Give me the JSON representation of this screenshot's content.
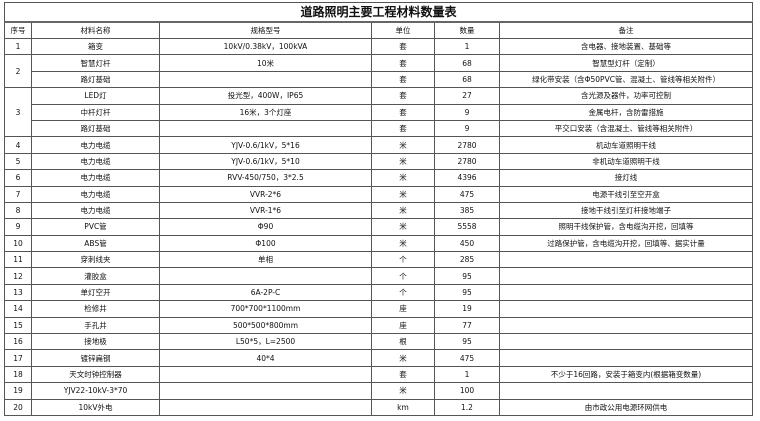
{
  "title": "道路照明主要工程材料数量表",
  "headers": [
    "序号",
    "材料名称",
    "规格型号",
    "单位",
    "数量",
    "备注"
  ],
  "groups": [
    {
      "no": "1",
      "items": [
        [
          "箱变",
          "10kV/0.38kV，100kVA",
          "套",
          "1",
          "含电器、接地装置、基础等"
        ]
      ]
    },
    {
      "no": "2",
      "items": [
        [
          "智慧灯杆",
          "10米",
          "套",
          "68",
          "智慧型灯杆（定制）"
        ],
        [
          "路灯基础",
          "",
          "套",
          "68",
          "绿化带安装（含Φ50PVC管、混凝土、管线等相关附件）"
        ]
      ]
    },
    {
      "no": "3",
      "items": [
        [
          "LED灯",
          "投光型，400W，IP65",
          "套",
          "27",
          "含光源及器件，功率可控制"
        ],
        [
          "中杆灯杆",
          "16米，3个灯座",
          "套",
          "9",
          "金属电杆，含防雷措施"
        ],
        [
          "路灯基础",
          "",
          "套",
          "9",
          "平交口安装（含混凝土、管线等相关附件）"
        ]
      ]
    },
    {
      "no": "4",
      "items": [
        [
          "电力电缆",
          "YJV-0.6/1kV，5*16",
          "米",
          "2780",
          "机动车道照明干线"
        ]
      ]
    },
    {
      "no": "5",
      "items": [
        [
          "电力电缆",
          "YJV-0.6/1kV，5*10",
          "米",
          "2780",
          "非机动车道照明干线"
        ]
      ]
    },
    {
      "no": "6",
      "items": [
        [
          "电力电缆",
          "RVV-450/750，3*2.5",
          "米",
          "4396",
          "接灯线"
        ]
      ]
    },
    {
      "no": "7",
      "items": [
        [
          "电力电缆",
          "VVR-2*6",
          "米",
          "475",
          "电源干线引至空开盒"
        ]
      ]
    },
    {
      "no": "8",
      "items": [
        [
          "电力电缆",
          "VVR-1*6",
          "米",
          "385",
          "接地干线引至灯杆接地端子"
        ]
      ]
    },
    {
      "no": "9",
      "items": [
        [
          "PVC管",
          "Φ90",
          "米",
          "5558",
          "照明干线保护管，含电缆沟开挖，回填等"
        ]
      ]
    },
    {
      "no": "10",
      "items": [
        [
          "ABS管",
          "Φ100",
          "米",
          "450",
          "过路保护管，含电缆沟开挖，回填等、据实计量"
        ]
      ]
    },
    {
      "no": "11",
      "items": [
        [
          "穿刺线夹",
          "单相",
          "个",
          "285",
          ""
        ]
      ]
    },
    {
      "no": "12",
      "items": [
        [
          "灌胶盒",
          "",
          "个",
          "95",
          ""
        ]
      ]
    },
    {
      "no": "13",
      "items": [
        [
          "单灯空开",
          "6A-2P-C",
          "个",
          "95",
          ""
        ]
      ]
    },
    {
      "no": "14",
      "items": [
        [
          "检修井",
          "700*700*1100mm",
          "座",
          "19",
          ""
        ]
      ]
    },
    {
      "no": "15",
      "items": [
        [
          "手孔井",
          "500*500*800mm",
          "座",
          "77",
          ""
        ]
      ]
    },
    {
      "no": "16",
      "items": [
        [
          "接地极",
          "L50*5，L=2500",
          "根",
          "95",
          ""
        ]
      ]
    },
    {
      "no": "17",
      "items": [
        [
          "镀锌扁钢",
          "40*4",
          "米",
          "475",
          ""
        ]
      ]
    },
    {
      "no": "18",
      "items": [
        [
          "天文时钟控制器",
          "",
          "套",
          "1",
          "不少于16回路，安装于箱变内(根据箱变数量)"
        ]
      ]
    },
    {
      "no": "19",
      "items": [
        [
          "YJV22-10kV-3*70",
          "",
          "米",
          "100",
          ""
        ]
      ]
    },
    {
      "no": "20",
      "items": [
        [
          "10kV外电",
          "",
          "km",
          "1.2",
          "由市政公用电源环网供电"
        ]
      ]
    }
  ]
}
